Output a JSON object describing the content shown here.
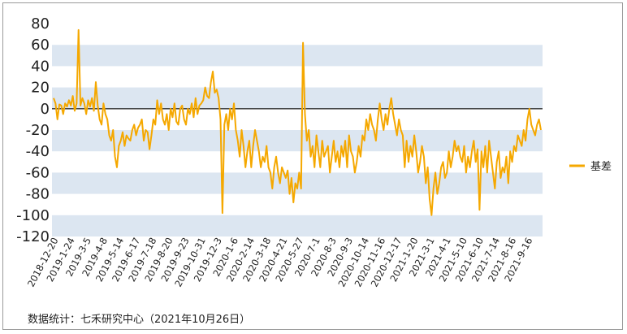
{
  "colors": {
    "series": "#F5A800",
    "band": "#DCE6F1",
    "zero_line": "#333333"
  },
  "source_note": "数据统计：七禾研究中心（2021年10月26日）",
  "chart_data": {
    "type": "line",
    "title": "",
    "xlabel": "",
    "ylabel": "",
    "ylim": [
      -120,
      80
    ],
    "yticks": [
      80,
      60,
      40,
      20,
      0,
      -20,
      -40,
      -60,
      -80,
      -100,
      -120
    ],
    "grid": "alternating horizontal bands",
    "legend": "right",
    "x_tick_labels": [
      "2018-12-20",
      "2019-1-24",
      "2019-3-5",
      "2019-4-8",
      "2019-5-14",
      "2019-6-17",
      "2019-7-18",
      "2019-8-20",
      "2019-9-23",
      "2019-10-31",
      "2019-12-3",
      "2020-1-6",
      "2020-2-14",
      "2020-3-18",
      "2020-4-21",
      "2020-5-27",
      "2020-7-1",
      "2020-8-3",
      "2020-9-3",
      "2020-10-14",
      "2020-11-16",
      "2020-12-17",
      "2021-1-20",
      "2021-3-1",
      "2021-4-1",
      "2021-5-10",
      "2021-6-10",
      "2021-7-14",
      "2021-8-16",
      "2021-9-16"
    ],
    "series": [
      {
        "name": "基差",
        "values": [
          10,
          5,
          -10,
          4,
          3,
          -5,
          5,
          2,
          8,
          3,
          12,
          -2,
          5,
          74,
          3,
          10,
          5,
          -5,
          8,
          2,
          10,
          -2,
          25,
          3,
          -10,
          -15,
          5,
          -5,
          -10,
          -25,
          -30,
          -20,
          -45,
          -55,
          -35,
          -30,
          -22,
          -35,
          -25,
          -28,
          -30,
          -20,
          -15,
          -25,
          -18,
          -15,
          -10,
          -30,
          -20,
          -22,
          -38,
          -25,
          -10,
          -15,
          8,
          -5,
          5,
          -10,
          -15,
          -5,
          -20,
          0,
          -8,
          5,
          -12,
          -15,
          0,
          3,
          -10,
          -15,
          0,
          -5,
          5,
          -8,
          10,
          -5,
          3,
          5,
          8,
          20,
          12,
          10,
          25,
          35,
          15,
          18,
          10,
          -10,
          -98,
          -15,
          -5,
          -20,
          0,
          -10,
          5,
          -20,
          -30,
          -45,
          -20,
          -35,
          -55,
          -40,
          -30,
          -55,
          -35,
          -20,
          -30,
          -40,
          -55,
          -45,
          -50,
          -35,
          -55,
          -60,
          -75,
          -55,
          -45,
          -60,
          -70,
          -55,
          -60,
          -65,
          -58,
          -80,
          -65,
          -88,
          -70,
          -75,
          -60,
          -75,
          62,
          -5,
          -30,
          -20,
          -45,
          -35,
          -55,
          -25,
          -40,
          -55,
          -30,
          -45,
          -40,
          -35,
          -60,
          -45,
          -30,
          -50,
          -40,
          -55,
          -35,
          -45,
          -30,
          -55,
          -25,
          -40,
          -45,
          -60,
          -50,
          -35,
          -45,
          -25,
          -30,
          -10,
          -20,
          -5,
          -15,
          -20,
          -30,
          -10,
          5,
          -10,
          -20,
          -5,
          -15,
          0,
          10,
          -5,
          -15,
          -25,
          -10,
          -20,
          -25,
          -55,
          -30,
          -50,
          -35,
          -45,
          -25,
          -40,
          -60,
          -50,
          -35,
          -45,
          -70,
          -55,
          -85,
          -100,
          -75,
          -60,
          -80,
          -70,
          -55,
          -50,
          -65,
          -60,
          -40,
          -55,
          -45,
          -30,
          -40,
          -35,
          -45,
          -50,
          -35,
          -60,
          -45,
          -55,
          -40,
          -30,
          -50,
          -38,
          -95,
          -40,
          -55,
          -35,
          -60,
          -30,
          -45,
          -60,
          -75,
          -50,
          -40,
          -65,
          -55,
          -60,
          -45,
          -70,
          -40,
          -50,
          -35,
          -40,
          -25,
          -30,
          -35,
          -20,
          -30,
          -10,
          0,
          -15,
          -20,
          -25,
          -15,
          -10,
          -20
        ]
      }
    ]
  }
}
